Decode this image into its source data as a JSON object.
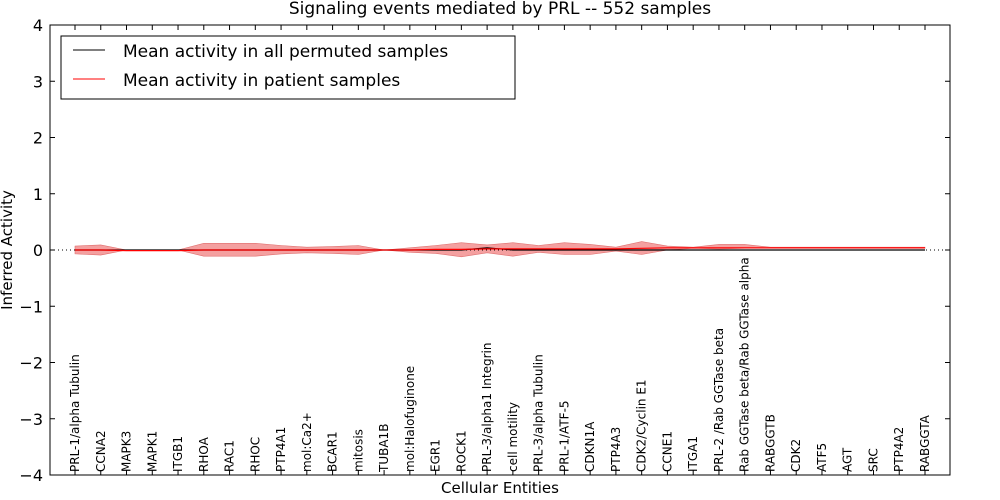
{
  "chart_data": {
    "type": "line",
    "title": "Signaling events mediated by PRL -- 552 samples",
    "xlabel": "Cellular Entities",
    "ylabel": "Inferred Activity",
    "ylim": [
      -4,
      4
    ],
    "yticks": [
      "−4",
      "−3",
      "−2",
      "−1",
      "0",
      "1",
      "2",
      "3",
      "4"
    ],
    "grid": false,
    "legend_position": "top-left",
    "categories": [
      "PRL-1/alpha Tubulin",
      "CCNA2",
      "MAPK3",
      "MAPK1",
      "ITGB1",
      "RHOA",
      "RAC1",
      "RHOC",
      "PTP4A1",
      "mol:Ca2+",
      "BCAR1",
      "mitosis",
      "TUBA1B",
      "mol:Halofuginone",
      "EGR1",
      "ROCK1",
      "PRL-3/alpha1 Integrin",
      "cell motility",
      "PRL-3/alpha Tubulin",
      "PRL-1/ATF-5",
      "CDKN1A",
      "PTP4A3",
      "CDK2/Cyclin E1",
      "CCNE1",
      "ITGA1",
      "PRL-2 /Rab GGTase beta",
      "Rab GGTase beta/Rab GGTase alpha",
      "RABGGTB",
      "CDK2",
      "ATF5",
      "AGT",
      "SRC",
      "PTP4A2",
      "RABGGTA"
    ],
    "series": [
      {
        "name": "Mean activity in all permuted samples",
        "color": "#000000",
        "values": [
          0,
          0,
          0,
          0,
          0,
          0,
          0,
          0,
          0,
          0,
          0,
          0,
          0,
          0,
          0,
          0,
          0.04,
          0,
          0,
          0,
          0,
          0,
          0,
          0,
          0,
          0,
          0,
          0,
          0,
          0,
          0,
          0,
          0,
          0
        ]
      },
      {
        "name": "Mean activity in patient samples",
        "color": "#ff0000",
        "values": [
          0,
          0,
          -0.01,
          -0.01,
          -0.01,
          0,
          0,
          0,
          0,
          0,
          0,
          0,
          0,
          0,
          0.01,
          0.01,
          0.02,
          0.02,
          0.02,
          0.02,
          0.02,
          0.02,
          0.03,
          0.04,
          0.04,
          0.04,
          0.04,
          0.04,
          0.04,
          0.04,
          0.04,
          0.04,
          0.04,
          0.04
        ],
        "band_upper": [
          0.07,
          0.09,
          0,
          0,
          0,
          0.12,
          0.12,
          0.12,
          0.08,
          0.05,
          0.06,
          0.08,
          0,
          0.04,
          0.08,
          0.13,
          0.09,
          0.13,
          0.08,
          0.13,
          0.1,
          0.05,
          0.15,
          0.07,
          0.05,
          0.1,
          0.1,
          0.05,
          0.05,
          0.05,
          0.05,
          0.05,
          0.05,
          0.05
        ],
        "band_lower": [
          -0.07,
          -0.09,
          0,
          0,
          0,
          -0.11,
          -0.11,
          -0.11,
          -0.07,
          -0.05,
          -0.06,
          -0.08,
          0,
          -0.04,
          -0.06,
          -0.12,
          -0.05,
          -0.11,
          -0.04,
          -0.08,
          -0.08,
          -0.02,
          -0.08,
          0,
          0.03,
          0.02,
          0.03,
          0.03,
          0.03,
          0.03,
          0.03,
          0.03,
          0.03,
          0.03
        ]
      }
    ],
    "baseline": 0,
    "colors": {
      "band_fill": "#f08080",
      "band_edge": "#e07070",
      "axis": "#000000"
    }
  }
}
